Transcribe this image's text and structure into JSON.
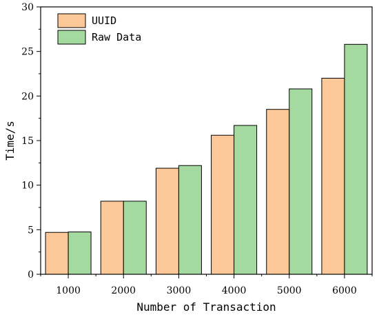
{
  "chart_data": {
    "type": "bar",
    "categories": [
      "1000",
      "2000",
      "3000",
      "4000",
      "5000",
      "6000"
    ],
    "series": [
      {
        "name": "UUID",
        "color": "#fdc897",
        "values": [
          4.7,
          8.2,
          11.9,
          15.6,
          18.5,
          22.0
        ]
      },
      {
        "name": "Raw Data",
        "color": "#a4d9a0",
        "values": [
          4.75,
          8.2,
          12.2,
          16.7,
          20.8,
          25.8
        ]
      }
    ],
    "xlabel": "Number of Transaction",
    "ylabel": "Time/s",
    "ylim": [
      0,
      30
    ],
    "yticks": [
      "0",
      "5",
      "10",
      "15",
      "20",
      "25",
      "30"
    ],
    "grid": false,
    "legend_position": "top-left"
  }
}
